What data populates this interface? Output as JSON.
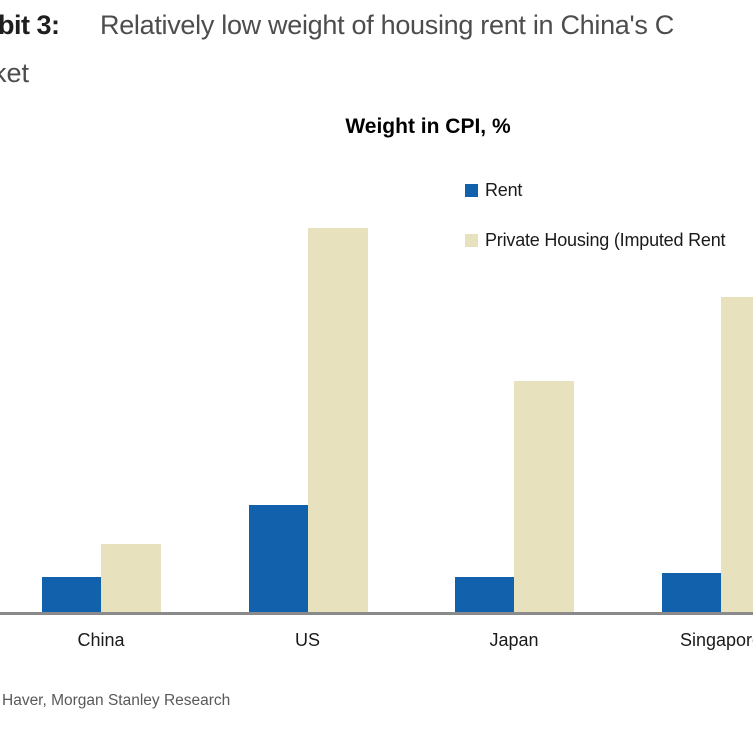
{
  "exhibit": {
    "label_prefix": "bit 3:",
    "title_line1": "Relatively low weight of housing rent in China's C",
    "title_line2": "ket"
  },
  "chart_data": {
    "type": "bar",
    "title": "Weight in CPI, %",
    "categories": [
      "China",
      "US",
      "Japan",
      "Singapore"
    ],
    "series": [
      {
        "name": "Rent",
        "color": "#1161AD",
        "values": [
          2.3,
          6.8,
          2.3,
          2.6
        ]
      },
      {
        "name": "Private Housing (Imputed Rent",
        "color": "#E8E1BE",
        "values": [
          4.4,
          24.0,
          14.5,
          19.7
        ]
      }
    ],
    "xlabel": "",
    "ylabel": "",
    "ylim": [
      0,
      25
    ],
    "grid": false,
    "y_axis_visible": false,
    "legend_position": "upper right inside",
    "axis_color": "#8A8A8A",
    "notes": "left, right image edges crop exhibit number, last category label and second legend label"
  },
  "source": "Haver, Morgan Stanley Research",
  "colors": {
    "rent_blue": "#1161AD",
    "imputed_beige": "#E8E1BE",
    "axis_gray": "#8A8A8A",
    "title_dark": "#1F1F1F",
    "title_gray": "#4D4D4D",
    "label_black": "#1A1A1A",
    "source_gray": "#595959"
  }
}
